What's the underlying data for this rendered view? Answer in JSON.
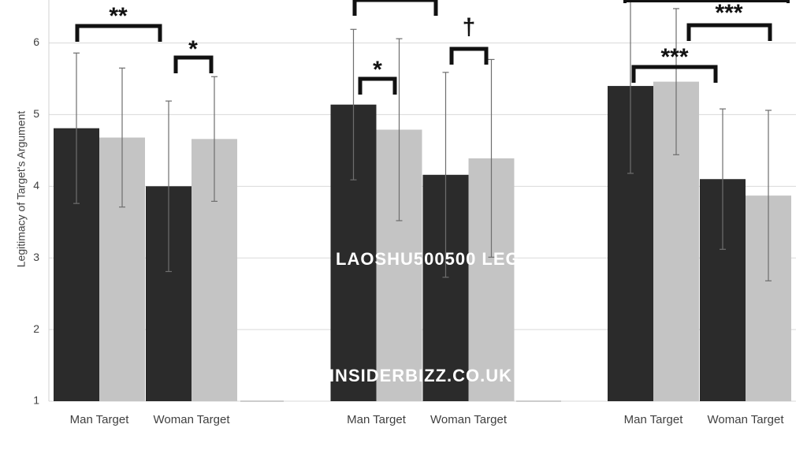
{
  "chart_data": {
    "type": "bar",
    "y_label": "Legitimacy of Target's Argument",
    "categories": [
      "Man Target",
      "Woman Target",
      "Man Target",
      "Woman Target",
      "Man Target",
      "Woman Target"
    ],
    "series": [
      {
        "color": "#2b2b2b",
        "values": [
          4.81,
          4.0,
          5.14,
          4.16,
          5.4,
          4.1
        ],
        "errors": [
          1.05,
          1.19,
          1.05,
          1.43,
          1.22,
          0.98
        ]
      },
      {
        "color": "#c4c4c4",
        "values": [
          4.68,
          4.66,
          4.79,
          4.39,
          5.46,
          3.87
        ],
        "errors": [
          0.97,
          0.87,
          1.27,
          1.38,
          1.02,
          1.19
        ]
      }
    ],
    "ylim": [
      1,
      6.6
    ],
    "yticks": [
      1,
      2,
      3,
      4,
      5,
      6
    ],
    "grid": true,
    "annotations": [
      "**",
      "*",
      "*",
      "†",
      "***",
      "***"
    ],
    "watermarks": [
      "LAOSHU500500 LEG",
      "INSIDERBIZZ.CO.UK"
    ]
  }
}
